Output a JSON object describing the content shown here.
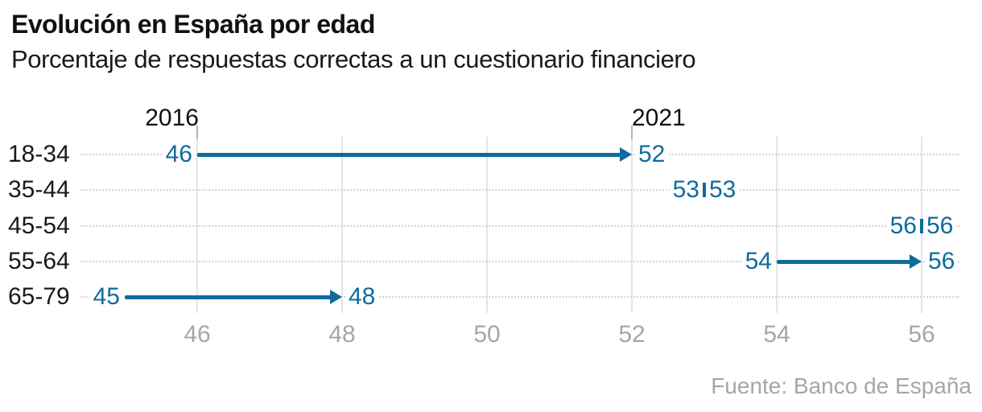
{
  "header": {
    "title": "Evolución en España por edad",
    "subtitle": "Porcentaje de respuestas correctas a un cuestionario financiero"
  },
  "chart_data": {
    "type": "dumbbell-arrow",
    "title": "Evolución en España por edad",
    "subtitle": "Porcentaje de respuestas correctas a un cuestionario financiero",
    "categories": [
      "18-34",
      "35-44",
      "45-54",
      "55-64",
      "65-79"
    ],
    "series": [
      {
        "name": "2016",
        "values": [
          46,
          53,
          56,
          54,
          45
        ]
      },
      {
        "name": "2021",
        "values": [
          52,
          53,
          56,
          56,
          48
        ]
      }
    ],
    "x_ticks": [
      46,
      48,
      50,
      52,
      54,
      56
    ],
    "xlim": [
      44.7,
      56.7
    ],
    "year_label_anchors": {
      "2016": 46,
      "2021": 52
    },
    "grid": true,
    "legend_position": "inline-top",
    "colors": {
      "accent": "#0f6b9c",
      "grid": "#e4e4e4",
      "leader": "#d4d4d4",
      "year_tick": "#b3b3b3",
      "axis_text": "#a6a6a6",
      "text": "#111111"
    }
  },
  "footer": {
    "source": "Fuente: Banco de España"
  }
}
